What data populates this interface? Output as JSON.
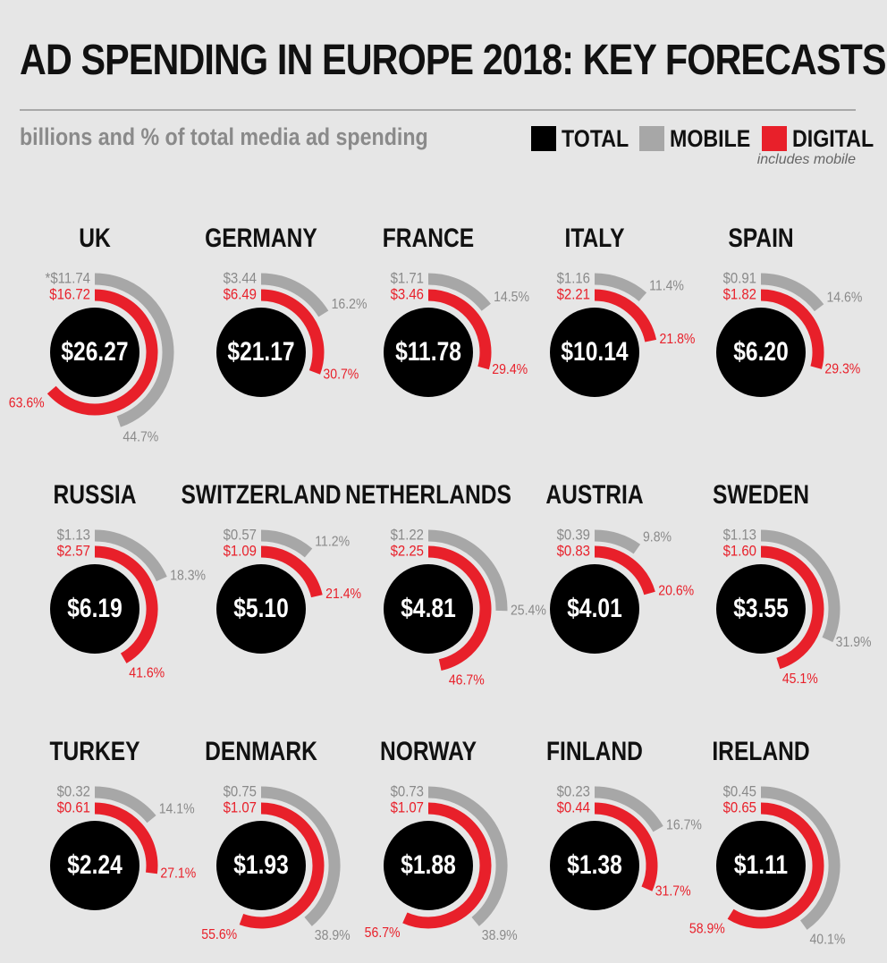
{
  "header": {
    "title": "AD SPENDING IN EUROPE 2018: KEY FORECASTS",
    "subtitle": "billions and % of total media ad spending",
    "legend": [
      {
        "label": "TOTAL",
        "color": "#000000"
      },
      {
        "label": "MOBILE",
        "color": "#a7a7a7"
      },
      {
        "label": "DIGITAL",
        "color": "#e8202a"
      }
    ],
    "legend_note": "includes mobile"
  },
  "colors": {
    "total": "#000000",
    "mobile": "#a7a7a7",
    "digital": "#e8202a",
    "background": "#e6e6e6"
  },
  "chart_data": {
    "type": "radial-bar",
    "units": "billions and % of total media ad spending",
    "countries": [
      {
        "name": "UK",
        "total_label": "$26.27",
        "mobile_label": "*$11.74",
        "digital_label": "$16.72",
        "mobile_pct_label": "44.7%",
        "digital_pct_label": "63.6%",
        "total": 26.27,
        "mobile": 11.74,
        "digital": 16.72,
        "mobile_pct": 44.7,
        "digital_pct": 63.6
      },
      {
        "name": "GERMANY",
        "total_label": "$21.17",
        "mobile_label": "$3.44",
        "digital_label": "$6.49",
        "mobile_pct_label": "16.2%",
        "digital_pct_label": "30.7%",
        "total": 21.17,
        "mobile": 3.44,
        "digital": 6.49,
        "mobile_pct": 16.2,
        "digital_pct": 30.7
      },
      {
        "name": "FRANCE",
        "total_label": "$11.78",
        "mobile_label": "$1.71",
        "digital_label": "$3.46",
        "mobile_pct_label": "14.5%",
        "digital_pct_label": "29.4%",
        "total": 11.78,
        "mobile": 1.71,
        "digital": 3.46,
        "mobile_pct": 14.5,
        "digital_pct": 29.4
      },
      {
        "name": "ITALY",
        "total_label": "$10.14",
        "mobile_label": "$1.16",
        "digital_label": "$2.21",
        "mobile_pct_label": "11.4%",
        "digital_pct_label": "21.8%",
        "total": 10.14,
        "mobile": 1.16,
        "digital": 2.21,
        "mobile_pct": 11.4,
        "digital_pct": 21.8
      },
      {
        "name": "SPAIN",
        "total_label": "$6.20",
        "mobile_label": "$0.91",
        "digital_label": "$1.82",
        "mobile_pct_label": "14.6%",
        "digital_pct_label": "29.3%",
        "total": 6.2,
        "mobile": 0.91,
        "digital": 1.82,
        "mobile_pct": 14.6,
        "digital_pct": 29.3
      },
      {
        "name": "RUSSIA",
        "total_label": "$6.19",
        "mobile_label": "$1.13",
        "digital_label": "$2.57",
        "mobile_pct_label": "18.3%",
        "digital_pct_label": "41.6%",
        "total": 6.19,
        "mobile": 1.13,
        "digital": 2.57,
        "mobile_pct": 18.3,
        "digital_pct": 41.6
      },
      {
        "name": "SWITZERLAND",
        "total_label": "$5.10",
        "mobile_label": "$0.57",
        "digital_label": "$1.09",
        "mobile_pct_label": "11.2%",
        "digital_pct_label": "21.4%",
        "total": 5.1,
        "mobile": 0.57,
        "digital": 1.09,
        "mobile_pct": 11.2,
        "digital_pct": 21.4
      },
      {
        "name": "NETHERLANDS",
        "total_label": "$4.81",
        "mobile_label": "$1.22",
        "digital_label": "$2.25",
        "mobile_pct_label": "25.4%",
        "digital_pct_label": "46.7%",
        "total": 4.81,
        "mobile": 1.22,
        "digital": 2.25,
        "mobile_pct": 25.4,
        "digital_pct": 46.7
      },
      {
        "name": "AUSTRIA",
        "total_label": "$4.01",
        "mobile_label": "$0.39",
        "digital_label": "$0.83",
        "mobile_pct_label": "9.8%",
        "digital_pct_label": "20.6%",
        "total": 4.01,
        "mobile": 0.39,
        "digital": 0.83,
        "mobile_pct": 9.8,
        "digital_pct": 20.6
      },
      {
        "name": "SWEDEN",
        "total_label": "$3.55",
        "mobile_label": "$1.13",
        "digital_label": "$1.60",
        "mobile_pct_label": "31.9%",
        "digital_pct_label": "45.1%",
        "total": 3.55,
        "mobile": 1.13,
        "digital": 1.6,
        "mobile_pct": 31.9,
        "digital_pct": 45.1
      },
      {
        "name": "TURKEY",
        "total_label": "$2.24",
        "mobile_label": "$0.32",
        "digital_label": "$0.61",
        "mobile_pct_label": "14.1%",
        "digital_pct_label": "27.1%",
        "total": 2.24,
        "mobile": 0.32,
        "digital": 0.61,
        "mobile_pct": 14.1,
        "digital_pct": 27.1
      },
      {
        "name": "DENMARK",
        "total_label": "$1.93",
        "mobile_label": "$0.75",
        "digital_label": "$1.07",
        "mobile_pct_label": "38.9%",
        "digital_pct_label": "55.6%",
        "total": 1.93,
        "mobile": 0.75,
        "digital": 1.07,
        "mobile_pct": 38.9,
        "digital_pct": 55.6
      },
      {
        "name": "NORWAY",
        "total_label": "$1.88",
        "mobile_label": "$0.73",
        "digital_label": "$1.07",
        "mobile_pct_label": "38.9%",
        "digital_pct_label": "56.7%",
        "total": 1.88,
        "mobile": 0.73,
        "digital": 1.07,
        "mobile_pct": 38.9,
        "digital_pct": 56.7
      },
      {
        "name": "FINLAND",
        "total_label": "$1.38",
        "mobile_label": "$0.23",
        "digital_label": "$0.44",
        "mobile_pct_label": "16.7%",
        "digital_pct_label": "31.7%",
        "total": 1.38,
        "mobile": 0.23,
        "digital": 0.44,
        "mobile_pct": 16.7,
        "digital_pct": 31.7
      },
      {
        "name": "IRELAND",
        "total_label": "$1.11",
        "mobile_label": "$0.45",
        "digital_label": "$0.65",
        "mobile_pct_label": "40.1%",
        "digital_pct_label": "58.9%",
        "total": 1.11,
        "mobile": 0.45,
        "digital": 0.65,
        "mobile_pct": 40.1,
        "digital_pct": 58.9
      }
    ]
  }
}
